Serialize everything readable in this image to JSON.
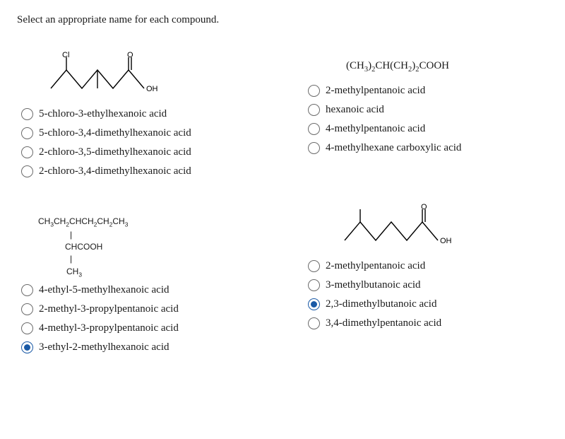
{
  "prompt": "Select an appropriate name for each compound.",
  "q1": {
    "svg": {
      "stroke": "#000000",
      "stroke_width": 1.4,
      "label_font": "11px Arial",
      "atoms": {
        "cl": "Cl",
        "o": "O",
        "oh": "OH"
      }
    },
    "options": [
      "5-chloro-3-ethylhexanoic acid",
      "5-chloro-3,4-dimethylhexanoic acid",
      "2-chloro-3,5-dimethylhexanoic acid",
      "2-chloro-3,4-dimethylhexanoic acid"
    ],
    "selected": -1
  },
  "q2": {
    "formula_html": "(CH<sub>3</sub>)<sub>2</sub>CH(CH<sub>2</sub>)<sub>2</sub>COOH",
    "options": [
      "2-methylpentanoic acid",
      "hexanoic acid",
      "4-methylpentanoic acid",
      "4-methylhexane carboxylic acid"
    ],
    "selected": -1
  },
  "q3": {
    "lines": [
      "CH<sub>3</sub>CH<sub>2</sub>CHCH<sub>2</sub>CH<sub>2</sub>CH<sub>3</sub>",
      "|",
      "CHCOOH",
      "|",
      "CH<sub>3</sub>"
    ],
    "options": [
      "4-ethyl-5-methylhexanoic acid",
      "2-methyl-3-propylpentanoic acid",
      "4-methyl-3-propylpentanoic acid",
      "3-ethyl-2-methylhexanoic acid"
    ],
    "selected": 3
  },
  "q4": {
    "svg": {
      "stroke": "#000000",
      "stroke_width": 1.4,
      "label_font": "11px Arial",
      "atoms": {
        "o": "O",
        "oh": "OH"
      }
    },
    "options": [
      "2-methylpentanoic acid",
      "3-methylbutanoic acid",
      "2,3-dimethylbutanoic acid",
      "3,4-dimethylpentanoic acid"
    ],
    "selected": 2
  }
}
